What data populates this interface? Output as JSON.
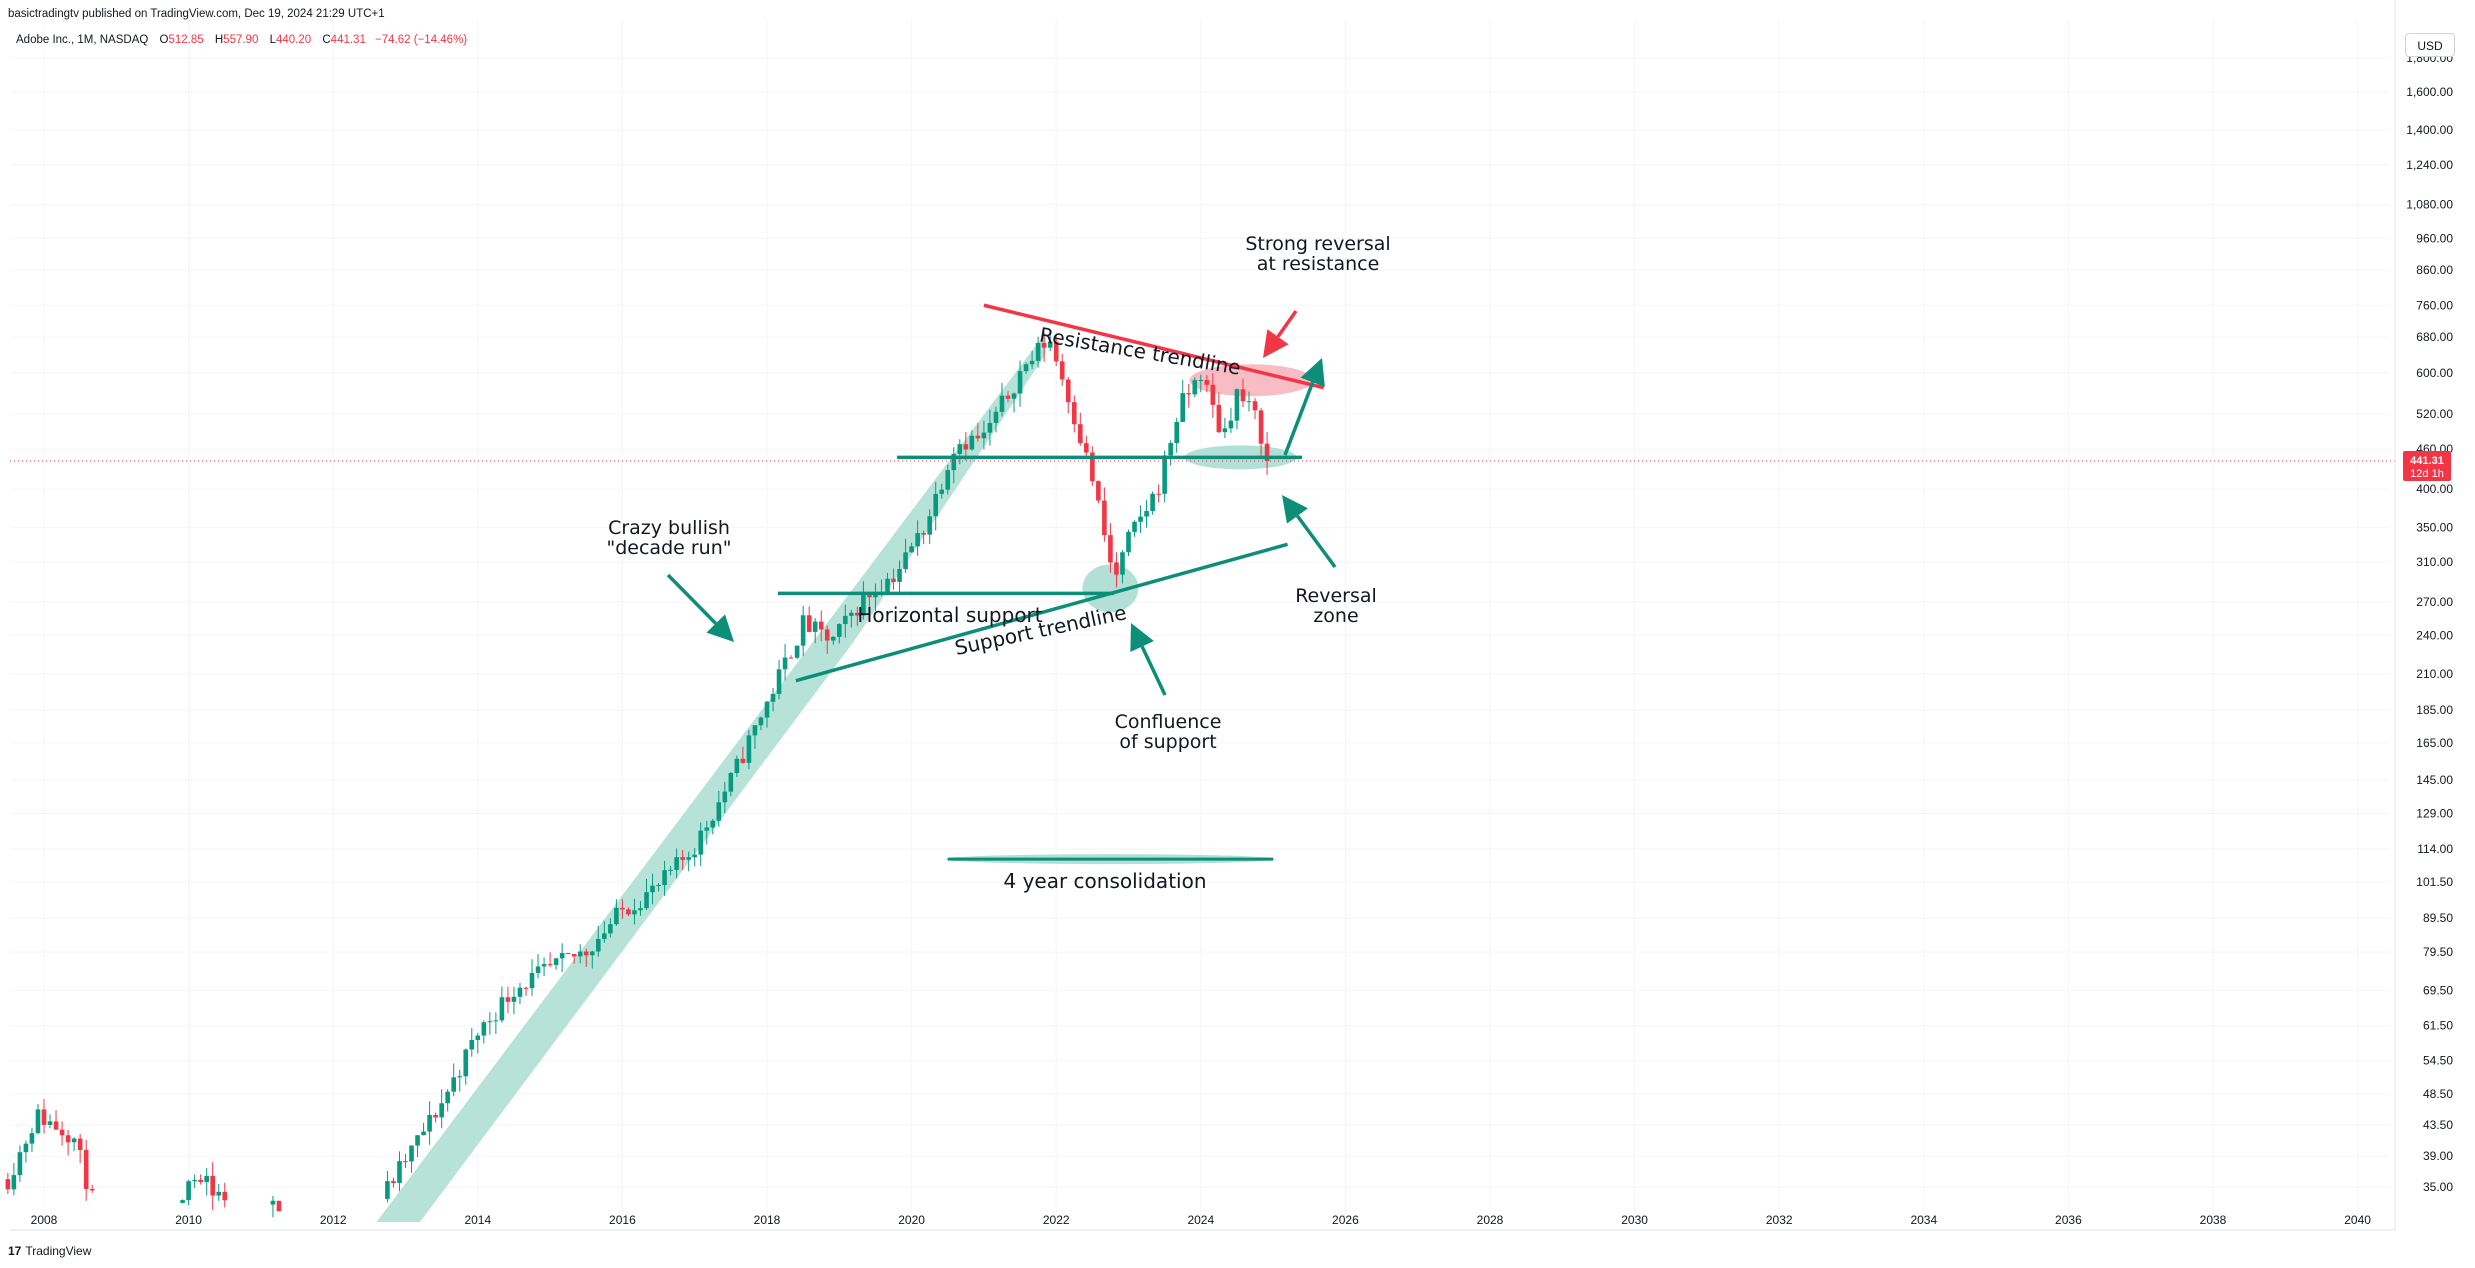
{
  "header": {
    "published_by": "basictradingtv published on TradingView.com, Dec 19, 2024 21:29 UTC+1"
  },
  "legend": {
    "symbol": "Adobe Inc., 1M, NASDAQ",
    "open_key": "O",
    "open": "512.85",
    "high_key": "H",
    "high": "557.90",
    "low_key": "L",
    "low": "440.20",
    "close_key": "C",
    "close": "441.31",
    "change": "−74.62 (−14.46%)"
  },
  "price_scale": {
    "currency_button": "USD",
    "last_price": "441.31",
    "countdown": "12d 1h"
  },
  "footer": {
    "logo_glyph": "17",
    "brand": "TradingView"
  },
  "colors": {
    "up": "#089981",
    "down": "#f23645",
    "channel_fill": "#b2e0d6",
    "resistance": "#f23645",
    "support": "#0d8e79",
    "arrow_green": "#0d8e79",
    "arrow_red": "#f23645"
  },
  "annotations": {
    "resistance_trendline": "Resistance trendline",
    "strong_reversal_1": "Strong reversal",
    "strong_reversal_2": "at resistance",
    "crazy_bullish_1": "Crazy bullish",
    "crazy_bullish_2": "\"decade run\"",
    "horizontal_support": "Horizontal support",
    "support_trendline": "Support trendline",
    "reversal_zone_1": "Reversal",
    "reversal_zone_2": "zone",
    "confluence_1": "Confluence",
    "confluence_2": "of support",
    "four_year": "4 year consolidation"
  },
  "chart_data": {
    "type": "candlestick",
    "title": "Adobe Inc., 1M, NASDAQ",
    "y_scale": "log",
    "ylim": [
      31,
      2000
    ],
    "xlim": [
      2007.5,
      2041
    ],
    "x_ticks": [
      "2008",
      "2010",
      "2012",
      "2014",
      "2016",
      "2018",
      "2020",
      "2022",
      "2024",
      "2026",
      "2028",
      "2030",
      "2032",
      "2034",
      "2036",
      "2038",
      "2040"
    ],
    "y_ticks": [
      "1,800.00",
      "1,600.00",
      "1,400.00",
      "1,240.00",
      "1,080.00",
      "960.00",
      "860.00",
      "760.00",
      "680.00",
      "600.00",
      "520.00",
      "460.00",
      "400.00",
      "350.00",
      "310.00",
      "270.00",
      "240.00",
      "210.00",
      "185.00",
      "165.00",
      "145.00",
      "129.00",
      "114.00",
      "101.50",
      "89.50",
      "79.50",
      "69.50",
      "61.50",
      "54.50",
      "48.50",
      "43.50",
      "39.00",
      "35.00"
    ],
    "close_path": [
      [
        2007.5,
        36
      ],
      [
        2007.9,
        45
      ],
      [
        2008.4,
        42
      ],
      [
        2008.8,
        30
      ],
      [
        2009.2,
        22
      ],
      [
        2009.8,
        33
      ],
      [
        2010.2,
        37
      ],
      [
        2010.7,
        30
      ],
      [
        2011.2,
        33
      ],
      [
        2011.7,
        27
      ],
      [
        2012.1,
        32
      ],
      [
        2012.6,
        33
      ],
      [
        2012.9,
        37
      ],
      [
        2013.5,
        47
      ],
      [
        2014.0,
        60
      ],
      [
        2014.5,
        70
      ],
      [
        2015.0,
        75
      ],
      [
        2015.5,
        80
      ],
      [
        2016.0,
        92
      ],
      [
        2016.5,
        100
      ],
      [
        2017.0,
        115
      ],
      [
        2017.5,
        145
      ],
      [
        2018.0,
        190
      ],
      [
        2018.5,
        250
      ],
      [
        2018.9,
        235
      ],
      [
        2019.3,
        270
      ],
      [
        2019.8,
        300
      ],
      [
        2020.2,
        355
      ],
      [
        2020.6,
        470
      ],
      [
        2021.0,
        480
      ],
      [
        2021.5,
        600
      ],
      [
        2021.9,
        680
      ],
      [
        2022.2,
        540
      ],
      [
        2022.5,
        415
      ],
      [
        2022.8,
        290
      ],
      [
        2023.0,
        335
      ],
      [
        2023.4,
        400
      ],
      [
        2023.7,
        530
      ],
      [
        2024.0,
        600
      ],
      [
        2024.3,
        480
      ],
      [
        2024.5,
        560
      ],
      [
        2024.75,
        515
      ],
      [
        2024.95,
        441.31
      ]
    ],
    "last_price": 441.31,
    "drawings": {
      "resistance_trendline": [
        [
          2021.0,
          760
        ],
        [
          2025.7,
          570
        ]
      ],
      "support_trendline": [
        [
          2018.4,
          205
        ],
        [
          2025.2,
          330
        ]
      ],
      "horizontal_support_level": 278,
      "support_level_current": 447,
      "consolidation_span": [
        2020.5,
        2025.0
      ]
    }
  }
}
